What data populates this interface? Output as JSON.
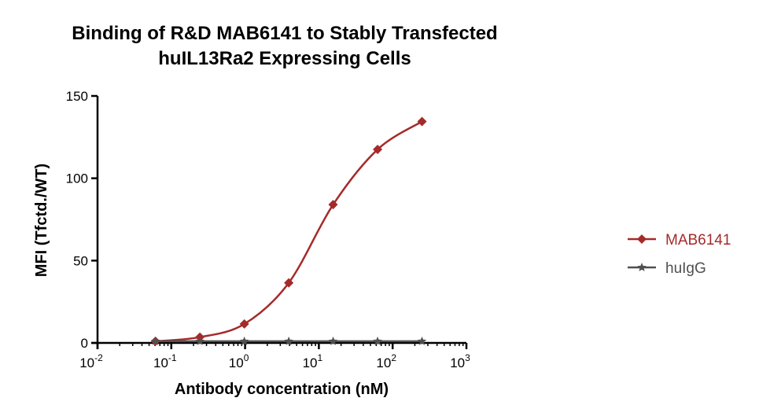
{
  "chart_data": {
    "type": "line",
    "title_lines": [
      "Binding of R&D MAB6141 to Stably Transfected",
      "huIL13Ra2 Expressing Cells"
    ],
    "xlabel": "Antibody concentration (nM)",
    "ylabel": "MFI (Tfctd./WT)",
    "xscale": "log",
    "xlim": [
      0.01,
      1000
    ],
    "ylim": [
      0,
      150
    ],
    "x_ticks": [
      {
        "value": 0.01,
        "base": "10",
        "exp": "-2"
      },
      {
        "value": 0.1,
        "base": "10",
        "exp": "-1"
      },
      {
        "value": 1,
        "base": "10",
        "exp": "0"
      },
      {
        "value": 10,
        "base": "10",
        "exp": "1"
      },
      {
        "value": 100,
        "base": "10",
        "exp": "2"
      },
      {
        "value": 1000,
        "base": "10",
        "exp": "3"
      }
    ],
    "y_ticks": [
      "0",
      "50",
      "100",
      "150"
    ],
    "grid": false,
    "legend_position": "right",
    "series": [
      {
        "name": "MAB6141",
        "color": "#a52a2a",
        "marker": "diamond",
        "fit": "sigmoidal",
        "x": [
          0.061,
          0.244,
          0.977,
          3.91,
          15.6,
          62.5,
          250
        ],
        "y": [
          1,
          3.5,
          11.5,
          36.5,
          84,
          117.5,
          134.5
        ]
      },
      {
        "name": "huIgG",
        "color": "#505050",
        "marker": "star",
        "fit": "line",
        "x": [
          0.061,
          0.244,
          0.977,
          3.91,
          15.6,
          62.5,
          250
        ],
        "y": [
          1,
          1,
          1,
          1,
          1,
          1,
          1
        ]
      }
    ]
  }
}
